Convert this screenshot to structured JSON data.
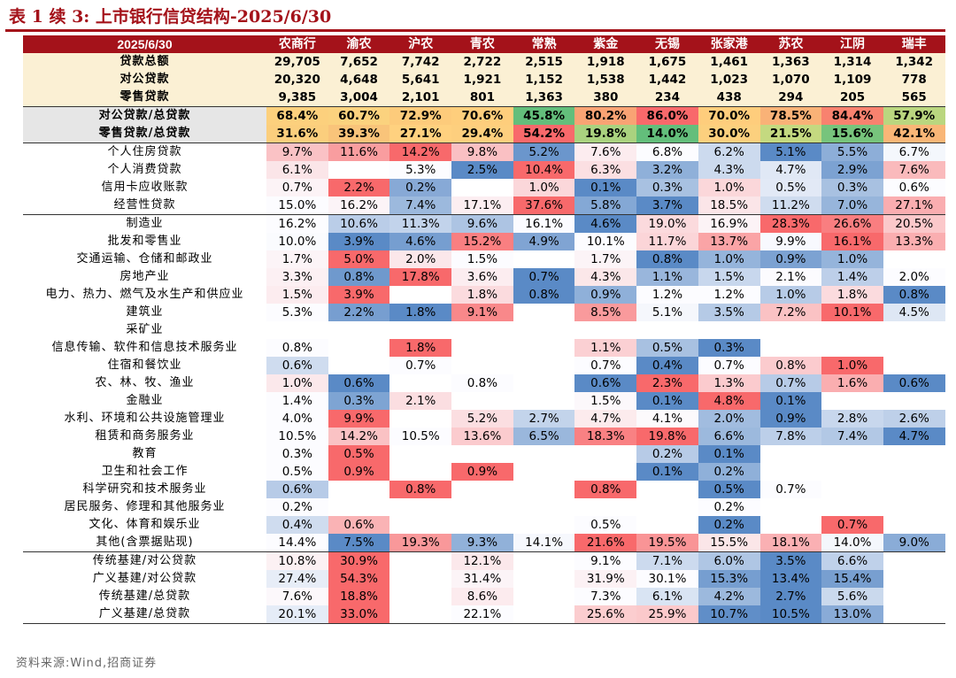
{
  "title": "表 1 续 3:  上市银行信贷结构-2025/6/30",
  "source": "资料来源:Wind,招商证券",
  "table": {
    "corner": "2025/6/30",
    "banks": [
      "农商行",
      "渝农",
      "沪农",
      "青农",
      "常熟",
      "紫金",
      "无锡",
      "张家港",
      "苏农",
      "江阴",
      "瑞丰"
    ],
    "summary_rows": [
      {
        "label": "贷款总额",
        "values": [
          "29,705",
          "7,652",
          "7,742",
          "2,722",
          "2,515",
          "1,918",
          "1,675",
          "1,461",
          "1,363",
          "1,314",
          "1,342"
        ]
      },
      {
        "label": "对公贷款",
        "values": [
          "20,320",
          "4,648",
          "5,641",
          "1,921",
          "1,152",
          "1,538",
          "1,442",
          "1,023",
          "1,070",
          "1,109",
          "778"
        ]
      },
      {
        "label": "零售贷款",
        "values": [
          "9,385",
          "3,004",
          "2,101",
          "801",
          "1,363",
          "380",
          "234",
          "438",
          "294",
          "205",
          "565"
        ]
      }
    ],
    "ratio_rows": [
      {
        "label": "对公贷款/总贷款",
        "values": [
          "68.4%",
          "60.7%",
          "72.9%",
          "70.6%",
          "45.8%",
          "80.2%",
          "86.0%",
          "70.0%",
          "78.5%",
          "84.4%",
          "57.9%"
        ],
        "colors": [
          "#fcd07d",
          "#fbd27e",
          "#fdcb7b",
          "#fece7c",
          "#63be7b",
          "#f9a374",
          "#f8696b",
          "#fecd7c",
          "#f9b277",
          "#f8826f",
          "#bad67f"
        ]
      },
      {
        "label": "零售贷款/总贷款",
        "values": [
          "31.6%",
          "39.3%",
          "27.1%",
          "29.4%",
          "54.2%",
          "19.8%",
          "14.0%",
          "30.0%",
          "21.5%",
          "15.6%",
          "42.1%"
        ],
        "colors": [
          "#fbce7d",
          "#f9c47a",
          "#ffd17f",
          "#fdcf7e",
          "#f8696b",
          "#aad27f",
          "#63be7b",
          "#fcd07e",
          "#c4d980",
          "#77c47c",
          "#f9b677"
        ]
      }
    ],
    "retail_rows": [
      {
        "label": "个人住房贷款",
        "values": [
          "9.7%",
          "11.6%",
          "14.2%",
          "9.8%",
          "5.2%",
          "7.6%",
          "6.8%",
          "6.2%",
          "5.1%",
          "5.5%",
          "6.7%"
        ]
      },
      {
        "label": "个人消费贷款",
        "values": [
          "6.1%",
          "",
          "5.3%",
          "2.5%",
          "10.4%",
          "6.3%",
          "3.2%",
          "4.3%",
          "4.7%",
          "2.9%",
          "7.6%"
        ]
      },
      {
        "label": "信用卡应收账款",
        "values": [
          "0.7%",
          "2.2%",
          "0.2%",
          "",
          "1.0%",
          "0.1%",
          "0.3%",
          "1.0%",
          "0.5%",
          "0.3%",
          "0.6%"
        ]
      },
      {
        "label": "经营性贷款",
        "values": [
          "15.0%",
          "16.2%",
          "7.4%",
          "17.1%",
          "37.6%",
          "5.8%",
          "3.7%",
          "18.5%",
          "11.2%",
          "7.0%",
          "27.1%"
        ]
      }
    ],
    "industry_rows": [
      {
        "label": "制造业",
        "values": [
          "16.2%",
          "10.6%",
          "11.3%",
          "9.6%",
          "16.1%",
          "4.6%",
          "19.0%",
          "16.9%",
          "28.3%",
          "26.6%",
          "20.5%"
        ]
      },
      {
        "label": "批发和零售业",
        "values": [
          "10.0%",
          "3.9%",
          "4.6%",
          "15.2%",
          "4.9%",
          "10.1%",
          "11.7%",
          "13.7%",
          "9.9%",
          "16.1%",
          "13.3%"
        ]
      },
      {
        "label": "交通运输、仓储和邮政业",
        "values": [
          "1.7%",
          "5.0%",
          "2.0%",
          "1.5%",
          "",
          "1.7%",
          "0.8%",
          "1.0%",
          "0.9%",
          "1.0%",
          ""
        ]
      },
      {
        "label": "房地产业",
        "values": [
          "3.3%",
          "0.8%",
          "17.8%",
          "3.6%",
          "0.7%",
          "4.3%",
          "1.1%",
          "1.5%",
          "2.1%",
          "1.4%",
          "2.0%"
        ]
      },
      {
        "label": "电力、热力、燃气及水生产和供应业",
        "values": [
          "1.5%",
          "3.9%",
          "",
          "1.8%",
          "0.8%",
          "0.9%",
          "1.2%",
          "1.2%",
          "1.0%",
          "1.8%",
          "0.8%"
        ]
      },
      {
        "label": "建筑业",
        "values": [
          "5.3%",
          "2.2%",
          "1.8%",
          "9.1%",
          "",
          "8.5%",
          "5.1%",
          "3.5%",
          "7.2%",
          "10.1%",
          "4.5%"
        ]
      },
      {
        "label": "采矿业",
        "values": [
          "",
          "",
          "",
          "",
          "",
          "",
          "",
          "",
          "",
          "",
          ""
        ]
      },
      {
        "label": "信息传输、软件和信息技术服务业",
        "values": [
          "0.8%",
          "",
          "1.8%",
          "",
          "",
          "1.1%",
          "0.5%",
          "0.3%",
          "",
          "",
          ""
        ]
      },
      {
        "label": "住宿和餐饮业",
        "values": [
          "0.6%",
          "",
          "0.7%",
          "",
          "",
          "0.7%",
          "0.4%",
          "0.7%",
          "0.8%",
          "1.0%",
          ""
        ]
      },
      {
        "label": "农、林、牧、渔业",
        "values": [
          "1.0%",
          "0.6%",
          "",
          "0.8%",
          "",
          "0.6%",
          "2.3%",
          "1.3%",
          "0.7%",
          "1.6%",
          "0.6%"
        ]
      },
      {
        "label": "金融业",
        "values": [
          "1.4%",
          "0.3%",
          "2.1%",
          "",
          "",
          "1.5%",
          "0.1%",
          "4.8%",
          "0.1%",
          "",
          ""
        ]
      },
      {
        "label": "水利、环境和公共设施管理业",
        "values": [
          "4.0%",
          "9.9%",
          "",
          "5.2%",
          "2.7%",
          "4.7%",
          "4.1%",
          "2.0%",
          "0.9%",
          "2.8%",
          "2.6%"
        ]
      },
      {
        "label": "租赁和商务服务业",
        "values": [
          "10.5%",
          "14.2%",
          "10.5%",
          "13.6%",
          "6.5%",
          "18.3%",
          "19.8%",
          "6.6%",
          "7.8%",
          "7.4%",
          "4.7%"
        ]
      },
      {
        "label": "教育",
        "values": [
          "0.3%",
          "0.5%",
          "",
          "",
          "",
          "",
          "0.2%",
          "0.1%",
          "",
          "",
          ""
        ]
      },
      {
        "label": "卫生和社会工作",
        "values": [
          "0.5%",
          "0.9%",
          "",
          "0.9%",
          "",
          "",
          "0.1%",
          "0.2%",
          "",
          "",
          ""
        ]
      },
      {
        "label": "科学研究和技术服务业",
        "values": [
          "0.6%",
          "",
          "0.8%",
          "",
          "",
          "0.8%",
          "",
          "0.5%",
          "0.7%",
          "",
          ""
        ]
      },
      {
        "label": "居民服务、修理和其他服务业",
        "values": [
          "0.2%",
          "",
          "",
          "",
          "",
          "",
          "",
          "0.2%",
          "",
          "",
          ""
        ]
      },
      {
        "label": "文化、体育和娱乐业",
        "values": [
          "0.4%",
          "0.6%",
          "",
          "",
          "",
          "0.5%",
          "",
          "0.2%",
          "",
          "0.7%",
          ""
        ]
      },
      {
        "label": "其他(含票据贴现)",
        "values": [
          "14.4%",
          "7.5%",
          "19.3%",
          "9.3%",
          "14.1%",
          "21.6%",
          "19.5%",
          "15.5%",
          "18.1%",
          "14.0%",
          "9.0%"
        ]
      }
    ],
    "infra_rows": [
      {
        "label": "传统基建/对公贷款",
        "values": [
          "10.8%",
          "30.9%",
          "",
          "12.1%",
          "",
          "9.1%",
          "7.1%",
          "6.0%",
          "3.5%",
          "6.6%",
          ""
        ]
      },
      {
        "label": "广义基建/对公贷款",
        "values": [
          "27.4%",
          "54.3%",
          "",
          "31.4%",
          "",
          "31.9%",
          "30.1%",
          "15.3%",
          "13.4%",
          "15.4%",
          ""
        ]
      },
      {
        "label": "传统基建/总贷款",
        "values": [
          "7.6%",
          "18.8%",
          "",
          "8.6%",
          "",
          "7.3%",
          "6.1%",
          "4.2%",
          "2.7%",
          "5.6%",
          ""
        ]
      },
      {
        "label": "广义基建/总贷款",
        "values": [
          "20.1%",
          "33.0%",
          "",
          "22.1%",
          "",
          "25.6%",
          "25.9%",
          "10.7%",
          "10.5%",
          "13.0%",
          ""
        ]
      }
    ],
    "heat_colors": {
      "low": "#5a8ac6",
      "mid": "#fcfcff",
      "high": "#f8696b"
    }
  }
}
